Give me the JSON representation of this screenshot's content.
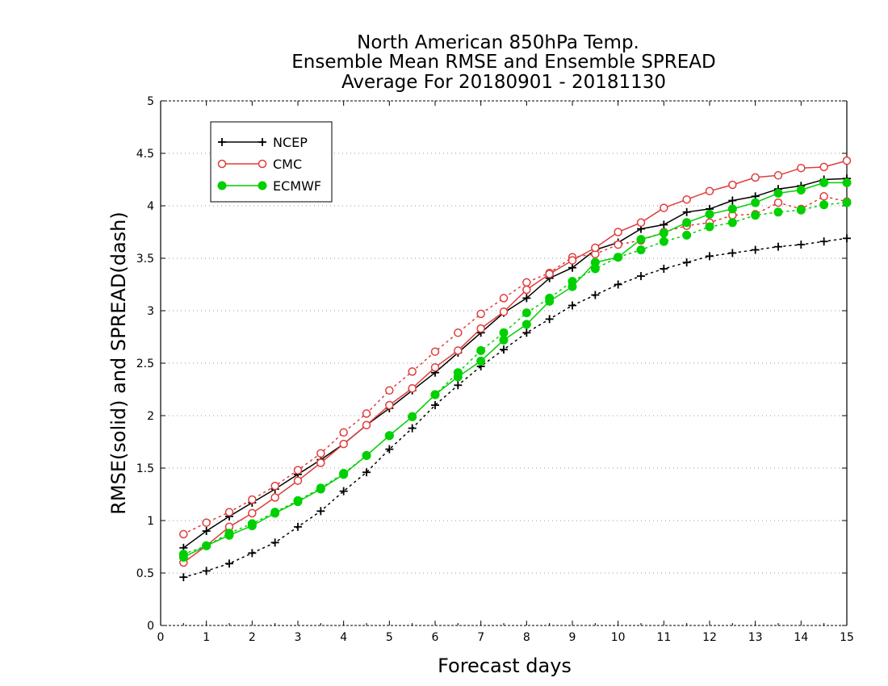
{
  "chart_data": {
    "type": "line",
    "title_lines": [
      "North American 850hPa Temp.",
      "Ensemble Mean RMSE and Ensemble SPREAD",
      "Average For 20180901 - 20181130"
    ],
    "xlabel": "Forecast days",
    "ylabel": "RMSE(solid) and SPREAD(dash)",
    "xlim": [
      0,
      15
    ],
    "ylim": [
      0,
      5
    ],
    "x_ticks": [
      "0",
      "1",
      "2",
      "3",
      "4",
      "5",
      "6",
      "7",
      "8",
      "9",
      "10",
      "11",
      "12",
      "13",
      "14",
      "15"
    ],
    "y_ticks": [
      "0",
      "0.5",
      "1",
      "1.5",
      "2",
      "2.5",
      "3",
      "3.5",
      "4",
      "4.5",
      "5"
    ],
    "grid": "dotted horizontal",
    "legend_position": "top-left",
    "x": [
      0.5,
      1,
      1.5,
      2,
      2.5,
      3,
      3.5,
      4,
      4.5,
      5,
      5.5,
      6,
      6.5,
      7,
      7.5,
      8,
      8.5,
      9,
      9.5,
      10,
      10.5,
      11,
      11.5,
      12,
      12.5,
      13,
      13.5,
      14,
      14.5,
      15
    ],
    "series": [
      {
        "name": "NCEP",
        "color": "#000000",
        "marker": "plus",
        "rmse": [
          0.74,
          0.9,
          1.04,
          1.17,
          1.3,
          1.44,
          1.58,
          1.73,
          1.91,
          2.07,
          2.24,
          2.41,
          2.6,
          2.79,
          2.98,
          3.12,
          3.31,
          3.41,
          3.58,
          3.65,
          3.78,
          3.82,
          3.94,
          3.97,
          4.05,
          4.09,
          4.16,
          4.19,
          4.25,
          4.26
        ],
        "spread": [
          0.46,
          0.52,
          0.59,
          0.69,
          0.79,
          0.94,
          1.09,
          1.28,
          1.46,
          1.68,
          1.88,
          2.1,
          2.29,
          2.47,
          2.63,
          2.79,
          2.92,
          3.05,
          3.15,
          3.25,
          3.33,
          3.4,
          3.46,
          3.52,
          3.55,
          3.58,
          3.61,
          3.63,
          3.66,
          3.69
        ]
      },
      {
        "name": "CMC",
        "color": "#e03c3c",
        "marker": "open-circle",
        "rmse": [
          0.6,
          0.76,
          0.94,
          1.07,
          1.22,
          1.38,
          1.55,
          1.73,
          1.91,
          2.1,
          2.26,
          2.46,
          2.62,
          2.83,
          2.99,
          3.2,
          3.35,
          3.48,
          3.6,
          3.75,
          3.84,
          3.98,
          4.06,
          4.14,
          4.2,
          4.27,
          4.29,
          4.36,
          4.37,
          4.43
        ],
        "spread": [
          0.87,
          0.98,
          1.08,
          1.2,
          1.33,
          1.48,
          1.64,
          1.84,
          2.02,
          2.24,
          2.42,
          2.61,
          2.79,
          2.97,
          3.12,
          3.27,
          3.36,
          3.51,
          3.54,
          3.63,
          3.67,
          3.75,
          3.81,
          3.84,
          3.91,
          3.92,
          4.03,
          3.97,
          4.09,
          4.04
        ]
      },
      {
        "name": "ECMWF",
        "color": "#00d000",
        "marker": "filled-circle",
        "rmse": [
          0.65,
          0.76,
          0.86,
          0.95,
          1.07,
          1.18,
          1.3,
          1.44,
          1.62,
          1.81,
          1.99,
          2.2,
          2.37,
          2.52,
          2.72,
          2.87,
          3.09,
          3.23,
          3.46,
          3.51,
          3.68,
          3.74,
          3.84,
          3.92,
          3.97,
          4.03,
          4.12,
          4.15,
          4.22,
          4.22
        ],
        "spread": [
          0.68,
          0.76,
          0.88,
          0.97,
          1.08,
          1.19,
          1.31,
          1.45,
          1.62,
          1.81,
          1.99,
          2.2,
          2.41,
          2.62,
          2.79,
          2.98,
          3.12,
          3.28,
          3.4,
          3.51,
          3.58,
          3.66,
          3.72,
          3.8,
          3.84,
          3.91,
          3.94,
          3.96,
          4.01,
          4.03
        ]
      }
    ]
  }
}
